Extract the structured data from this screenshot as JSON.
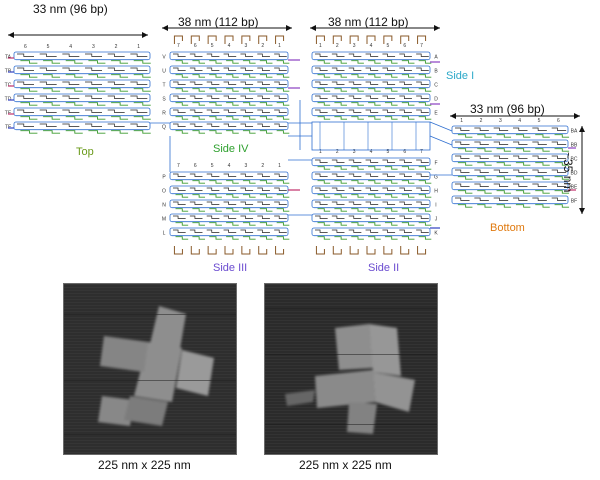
{
  "colors": {
    "helix": "#2f6fd0",
    "staple_green": "#3a9a2e",
    "loop": "#8a5a2a",
    "side_I": "#2aa8c8",
    "side_II": "#6a4bd0",
    "side_III": "#6a4bd0",
    "side_IV": "#2ea02e",
    "top": "#6a9a1a",
    "bottom": "#e07a10"
  },
  "dimensions": {
    "top_width": "33 nm (96 bp)",
    "side4_width": "38 nm (112 bp)",
    "side1_width": "38 nm (112 bp)",
    "bottom_width": "33 nm (96 bp)",
    "bottom_height": "~35 nm"
  },
  "panels": {
    "top": "Top",
    "side_I": "Side I",
    "side_II": "Side II",
    "side_III": "Side III",
    "side_IV": "Side IV",
    "bottom": "Bottom"
  },
  "row_labels": {
    "top": [
      "TA",
      "TB",
      "TC",
      "TD",
      "TE",
      "TF"
    ],
    "side4": [
      "V",
      "U",
      "T",
      "S",
      "R",
      "Q"
    ],
    "side3": [
      "P",
      "O",
      "N",
      "M",
      "L"
    ],
    "side1": [
      "A",
      "B",
      "C",
      "D",
      "E"
    ],
    "side2": [
      "F",
      "G",
      "H",
      "I",
      "J",
      "K"
    ],
    "bottom": [
      "BA",
      "BB",
      "BC",
      "BD",
      "BE",
      "BF"
    ]
  },
  "column_numbers": {
    "side4": [
      "7",
      "6",
      "5",
      "4",
      "3",
      "2",
      "1"
    ],
    "side1": [
      "1",
      "2",
      "3",
      "4",
      "5",
      "6",
      "7"
    ],
    "side3": [
      "7",
      "6",
      "5",
      "4",
      "3",
      "2",
      "1"
    ],
    "side2": [
      "1",
      "2",
      "3",
      "4",
      "5",
      "6",
      "7"
    ],
    "bottom": [
      "1",
      "2",
      "3",
      "4",
      "5",
      "6"
    ],
    "top": [
      "6",
      "5",
      "4",
      "3",
      "2",
      "1"
    ]
  },
  "micrographs": [
    {
      "caption": "225 nm x 225 nm"
    },
    {
      "caption": "225 nm x 225 nm"
    }
  ]
}
